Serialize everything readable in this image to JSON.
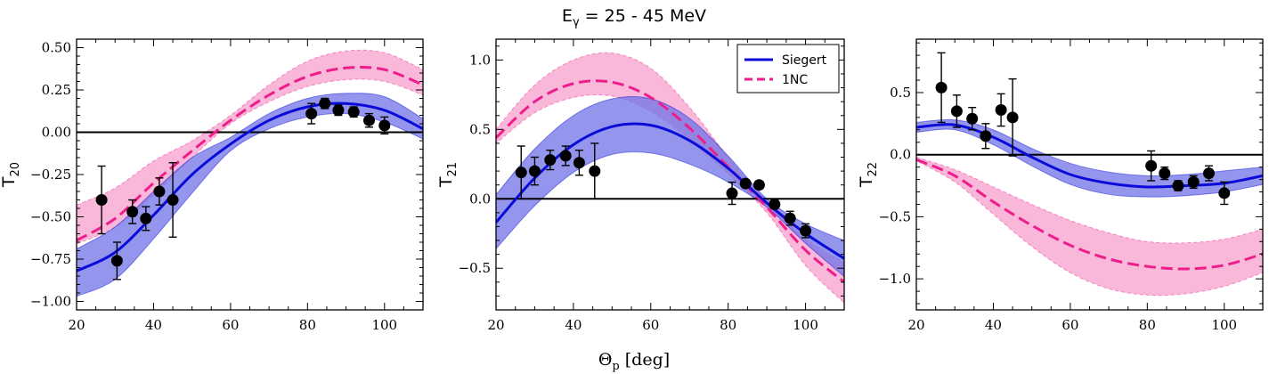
{
  "figure": {
    "title_main": "E",
    "title_sub": "γ",
    "title_rest": " = 25 - 45 MeV",
    "xlabel_main": "Θ",
    "xlabel_sub": "p",
    "xlabel_rest": " [deg]"
  },
  "colors": {
    "siegert": "#0b0bd9",
    "siegert_band": "#6f73e6",
    "onenc": "#ee1d8c",
    "onenc_band": "#f7a6cf",
    "data": "#000000"
  },
  "chart_data": [
    {
      "type": "line",
      "ylabel_main": "T",
      "ylabel_sub": "20",
      "xlim": [
        20,
        110
      ],
      "ylim": [
        -1.05,
        0.55
      ],
      "xticks": [
        20,
        40,
        60,
        80,
        100
      ],
      "xtick_labels": [
        "20",
        "40",
        "60",
        "80",
        "100"
      ],
      "yticks": [
        -1.0,
        -0.75,
        -0.5,
        -0.25,
        0.0,
        0.25,
        0.5
      ],
      "ytick_labels": [
        "−1.00",
        "−0.75",
        "−0.50",
        "−0.25",
        "0.00",
        "0.25",
        "0.50"
      ],
      "zero_line": true,
      "legend": null,
      "x": [
        20,
        30,
        40,
        50,
        60,
        70,
        80,
        90,
        100,
        110
      ],
      "series": [
        {
          "name": "Siegert",
          "style": "solid",
          "values": [
            -0.82,
            -0.71,
            -0.49,
            -0.25,
            -0.07,
            0.07,
            0.15,
            0.17,
            0.13,
            0.02
          ],
          "band_upper": [
            -0.69,
            -0.56,
            -0.35,
            -0.15,
            -0.03,
            0.11,
            0.2,
            0.23,
            0.21,
            0.08
          ],
          "band_lower": [
            -0.97,
            -0.87,
            -0.63,
            -0.36,
            -0.11,
            0.02,
            0.09,
            0.11,
            0.06,
            -0.04
          ]
        },
        {
          "name": "1NC",
          "style": "dashed",
          "values": [
            -0.64,
            -0.51,
            -0.3,
            -0.11,
            0.07,
            0.22,
            0.33,
            0.38,
            0.37,
            0.28
          ],
          "band_upper": [
            -0.43,
            -0.33,
            -0.17,
            -0.05,
            0.1,
            0.28,
            0.42,
            0.48,
            0.47,
            0.37
          ],
          "band_lower": [
            -0.66,
            -0.56,
            -0.37,
            -0.15,
            0.05,
            0.18,
            0.27,
            0.31,
            0.3,
            0.22
          ]
        }
      ],
      "points": [
        {
          "x": 26.5,
          "y": -0.4,
          "err": 0.2
        },
        {
          "x": 30.5,
          "y": -0.76,
          "err": 0.11
        },
        {
          "x": 34.5,
          "y": -0.47,
          "err": 0.07
        },
        {
          "x": 38,
          "y": -0.51,
          "err": 0.07
        },
        {
          "x": 41.5,
          "y": -0.35,
          "err": 0.08
        },
        {
          "x": 45,
          "y": -0.4,
          "err": 0.22
        },
        {
          "x": 81,
          "y": 0.11,
          "err": 0.06
        },
        {
          "x": 84.5,
          "y": 0.17,
          "err": 0.03
        },
        {
          "x": 88,
          "y": 0.13,
          "err": 0.03
        },
        {
          "x": 92,
          "y": 0.12,
          "err": 0.03
        },
        {
          "x": 96,
          "y": 0.07,
          "err": 0.04
        },
        {
          "x": 100,
          "y": 0.04,
          "err": 0.05
        }
      ]
    },
    {
      "type": "line",
      "ylabel_main": "T",
      "ylabel_sub": "21",
      "xlim": [
        20,
        110
      ],
      "ylim": [
        -0.8,
        1.15
      ],
      "xticks": [
        20,
        40,
        60,
        80,
        100
      ],
      "xtick_labels": [
        "20",
        "40",
        "60",
        "80",
        "100"
      ],
      "yticks": [
        -0.5,
        0.0,
        0.5,
        1.0
      ],
      "ytick_labels": [
        "−0.5",
        "0.0",
        "0.5",
        "1.0"
      ],
      "zero_line": true,
      "legend": {
        "position": "top-right",
        "entries": [
          "Siegert",
          "1NC"
        ]
      },
      "x": [
        20,
        30,
        40,
        50,
        60,
        70,
        80,
        90,
        100,
        110
      ],
      "series": [
        {
          "name": "Siegert",
          "style": "solid",
          "values": [
            -0.17,
            0.15,
            0.39,
            0.52,
            0.53,
            0.42,
            0.22,
            -0.03,
            -0.25,
            -0.43
          ],
          "band_upper": [
            0.03,
            0.36,
            0.6,
            0.72,
            0.72,
            0.58,
            0.31,
            0.0,
            -0.18,
            -0.3
          ],
          "band_lower": [
            -0.36,
            -0.05,
            0.19,
            0.32,
            0.33,
            0.25,
            0.12,
            -0.06,
            -0.32,
            -0.56
          ]
        },
        {
          "name": "1NC",
          "style": "dashed",
          "values": [
            0.44,
            0.7,
            0.83,
            0.84,
            0.73,
            0.51,
            0.23,
            -0.06,
            -0.37,
            -0.6
          ],
          "band_upper": [
            0.5,
            0.82,
            1.0,
            1.05,
            0.94,
            0.66,
            0.3,
            -0.02,
            -0.29,
            -0.46
          ],
          "band_lower": [
            0.4,
            0.62,
            0.73,
            0.74,
            0.63,
            0.43,
            0.18,
            -0.1,
            -0.48,
            -0.75
          ]
        }
      ],
      "points": [
        {
          "x": 26.5,
          "y": 0.19,
          "err": 0.19
        },
        {
          "x": 30,
          "y": 0.2,
          "err": 0.1
        },
        {
          "x": 34,
          "y": 0.28,
          "err": 0.07
        },
        {
          "x": 38,
          "y": 0.31,
          "err": 0.07
        },
        {
          "x": 41.5,
          "y": 0.26,
          "err": 0.09
        },
        {
          "x": 45.5,
          "y": 0.2,
          "err": 0.2
        },
        {
          "x": 81,
          "y": 0.04,
          "err": 0.08
        },
        {
          "x": 84.5,
          "y": 0.11,
          "err": 0.02
        },
        {
          "x": 88,
          "y": 0.1,
          "err": 0.02
        },
        {
          "x": 92,
          "y": -0.04,
          "err": 0.03
        },
        {
          "x": 96,
          "y": -0.14,
          "err": 0.05
        },
        {
          "x": 100,
          "y": -0.23,
          "err": 0.05
        }
      ]
    },
    {
      "type": "line",
      "ylabel_main": "T",
      "ylabel_sub": "22",
      "xlim": [
        20,
        110
      ],
      "ylim": [
        -1.25,
        0.93
      ],
      "xticks": [
        20,
        40,
        60,
        80,
        100
      ],
      "xtick_labels": [
        "20",
        "40",
        "60",
        "80",
        "100"
      ],
      "yticks": [
        -1.0,
        -0.5,
        0.0,
        0.5
      ],
      "ytick_labels": [
        "−1.0",
        "−0.5",
        "0.0",
        "0.5"
      ],
      "zero_line": true,
      "legend": null,
      "x": [
        20,
        30,
        40,
        50,
        60,
        70,
        80,
        90,
        100,
        110
      ],
      "series": [
        {
          "name": "Siegert",
          "style": "solid",
          "values": [
            0.22,
            0.24,
            0.14,
            -0.02,
            -0.16,
            -0.23,
            -0.26,
            -0.25,
            -0.23,
            -0.17
          ],
          "band_upper": [
            0.26,
            0.28,
            0.2,
            0.05,
            -0.07,
            -0.14,
            -0.17,
            -0.16,
            -0.13,
            -0.1
          ],
          "band_lower": [
            0.18,
            0.2,
            0.08,
            -0.09,
            -0.24,
            -0.32,
            -0.34,
            -0.33,
            -0.3,
            -0.24
          ]
        },
        {
          "name": "1NC",
          "style": "dashed",
          "values": [
            -0.04,
            -0.17,
            -0.38,
            -0.57,
            -0.73,
            -0.84,
            -0.9,
            -0.92,
            -0.89,
            -0.8
          ],
          "band_upper": [
            -0.02,
            -0.12,
            -0.26,
            -0.4,
            -0.53,
            -0.63,
            -0.7,
            -0.71,
            -0.68,
            -0.6
          ],
          "band_lower": [
            -0.05,
            -0.22,
            -0.48,
            -0.74,
            -0.95,
            -1.08,
            -1.13,
            -1.12,
            -1.06,
            -0.95
          ]
        }
      ],
      "points": [
        {
          "x": 26.5,
          "y": 0.54,
          "err": 0.28
        },
        {
          "x": 30.5,
          "y": 0.35,
          "err": 0.13
        },
        {
          "x": 34.5,
          "y": 0.29,
          "err": 0.09
        },
        {
          "x": 38,
          "y": 0.15,
          "err": 0.1
        },
        {
          "x": 42,
          "y": 0.36,
          "err": 0.13
        },
        {
          "x": 45,
          "y": 0.3,
          "err": 0.31
        },
        {
          "x": 81,
          "y": -0.09,
          "err": 0.12
        },
        {
          "x": 84.5,
          "y": -0.15,
          "err": 0.05
        },
        {
          "x": 88,
          "y": -0.25,
          "err": 0.04
        },
        {
          "x": 92,
          "y": -0.22,
          "err": 0.05
        },
        {
          "x": 96,
          "y": -0.15,
          "err": 0.06
        },
        {
          "x": 100,
          "y": -0.31,
          "err": 0.09
        }
      ]
    }
  ]
}
